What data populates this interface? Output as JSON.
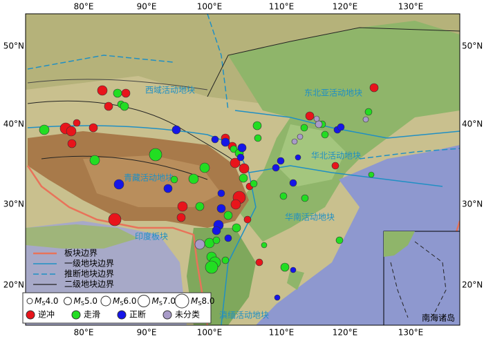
{
  "map": {
    "lon_labels": [
      "80°E",
      "90°E",
      "100°E",
      "110°E",
      "120°E",
      "130°E"
    ],
    "lat_labels": [
      "50°N",
      "40°N",
      "30°N",
      "20°N"
    ],
    "regions": [
      "西域活动地块",
      "东北亚活动地块",
      "青藏活动地块",
      "华北活动地块",
      "华南活动地块",
      "印度板块",
      "滇缅活动地块"
    ],
    "line_legend": [
      "板块边界",
      "一级地块边界",
      "推断地块边界",
      "二级地块边界"
    ],
    "magnitude_legend": {
      "symbol": "M",
      "subscript": "S",
      "values": [
        "4.0",
        "5.0",
        "6.0",
        "7.0",
        "8.0"
      ]
    },
    "type_legend": [
      {
        "label": "逆冲",
        "color": "#e8141b"
      },
      {
        "label": "走滑",
        "color": "#22dd22"
      },
      {
        "label": "正断",
        "color": "#1515e8"
      },
      {
        "label": "未分类",
        "color": "#a89bc8"
      }
    ],
    "inset_title": "南海诸岛"
  }
}
